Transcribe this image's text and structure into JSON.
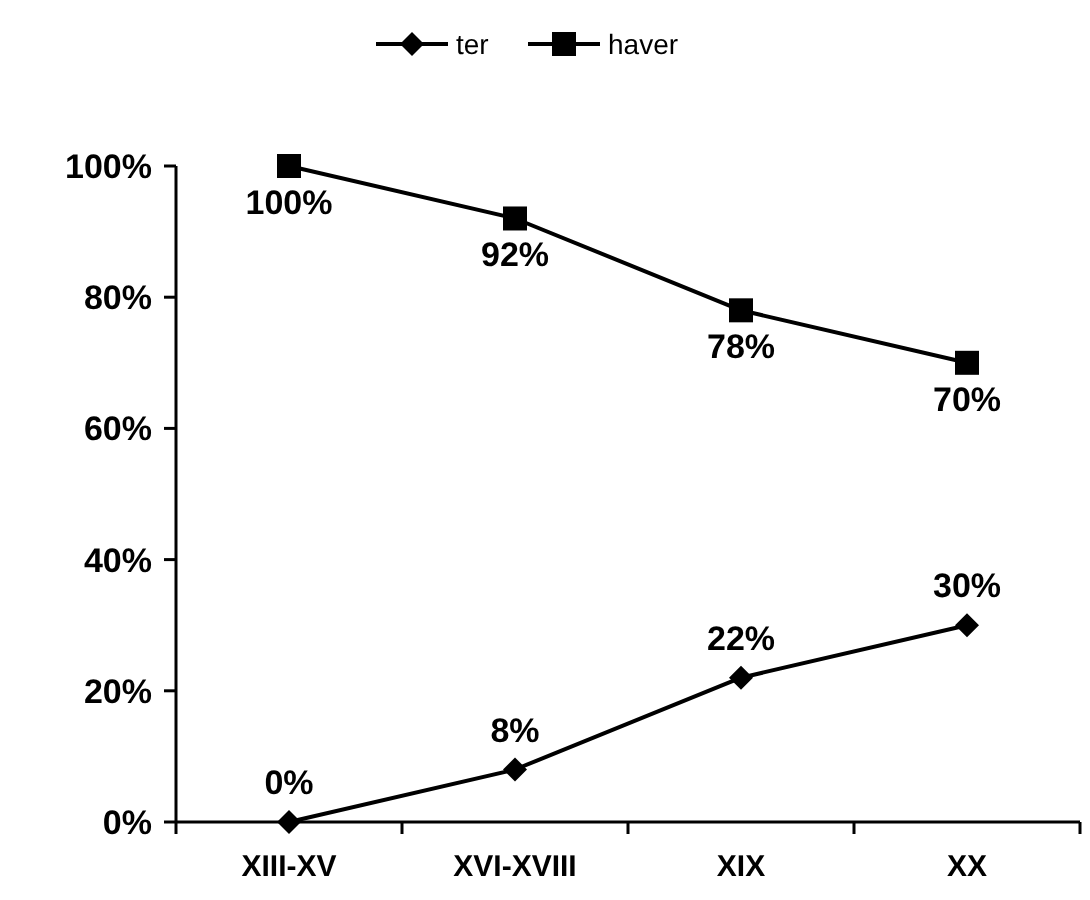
{
  "chart_data": {
    "type": "line",
    "categories": [
      "XIII-XV",
      "XVI-XVIII",
      "XIX",
      "XX"
    ],
    "series": [
      {
        "name": "ter",
        "color": "#000000",
        "marker": "diamond",
        "values": [
          0,
          8,
          22,
          30
        ],
        "value_labels": [
          "0%",
          "8%",
          "22%",
          "30%"
        ]
      },
      {
        "name": "haver",
        "color": "#000000",
        "marker": "square",
        "values": [
          100,
          92,
          78,
          70
        ],
        "value_labels": [
          "100%",
          "92%",
          "78%",
          "70%"
        ]
      }
    ],
    "ylim": [
      0,
      100
    ],
    "yticks": [
      {
        "value": 0,
        "label": "0%"
      },
      {
        "value": 20,
        "label": "20%"
      },
      {
        "value": 40,
        "label": "40%"
      },
      {
        "value": 60,
        "label": "60%"
      },
      {
        "value": 80,
        "label": "80%"
      },
      {
        "value": 100,
        "label": "100%"
      }
    ],
    "grid": false,
    "legend": "top"
  }
}
